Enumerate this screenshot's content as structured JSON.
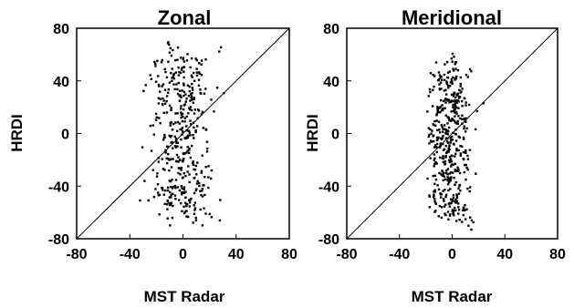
{
  "chart_data": [
    {
      "type": "scatter",
      "title": "Zonal",
      "xlabel": "MST Radar",
      "ylabel": "HRDI",
      "xlim": [
        -80,
        80
      ],
      "ylim": [
        -80,
        80
      ],
      "x_ticks": [
        "-80",
        "-40",
        "0",
        "40",
        "80"
      ],
      "y_ticks": [
        "80",
        "40",
        "0",
        "-40",
        "-80"
      ],
      "reference_line": "y = x",
      "grid": false,
      "legend": "none"
    },
    {
      "type": "scatter",
      "title": "Meridional",
      "xlabel": "MST Radar",
      "ylabel": "HRDI",
      "xlim": [
        -80,
        80
      ],
      "ylim": [
        -80,
        80
      ],
      "x_ticks": [
        "-80",
        "-40",
        "0",
        "40",
        "80"
      ],
      "y_ticks": [
        "80",
        "40",
        "0",
        "-40",
        "-80"
      ],
      "reference_line": "y = x",
      "grid": false,
      "legend": "none"
    }
  ]
}
